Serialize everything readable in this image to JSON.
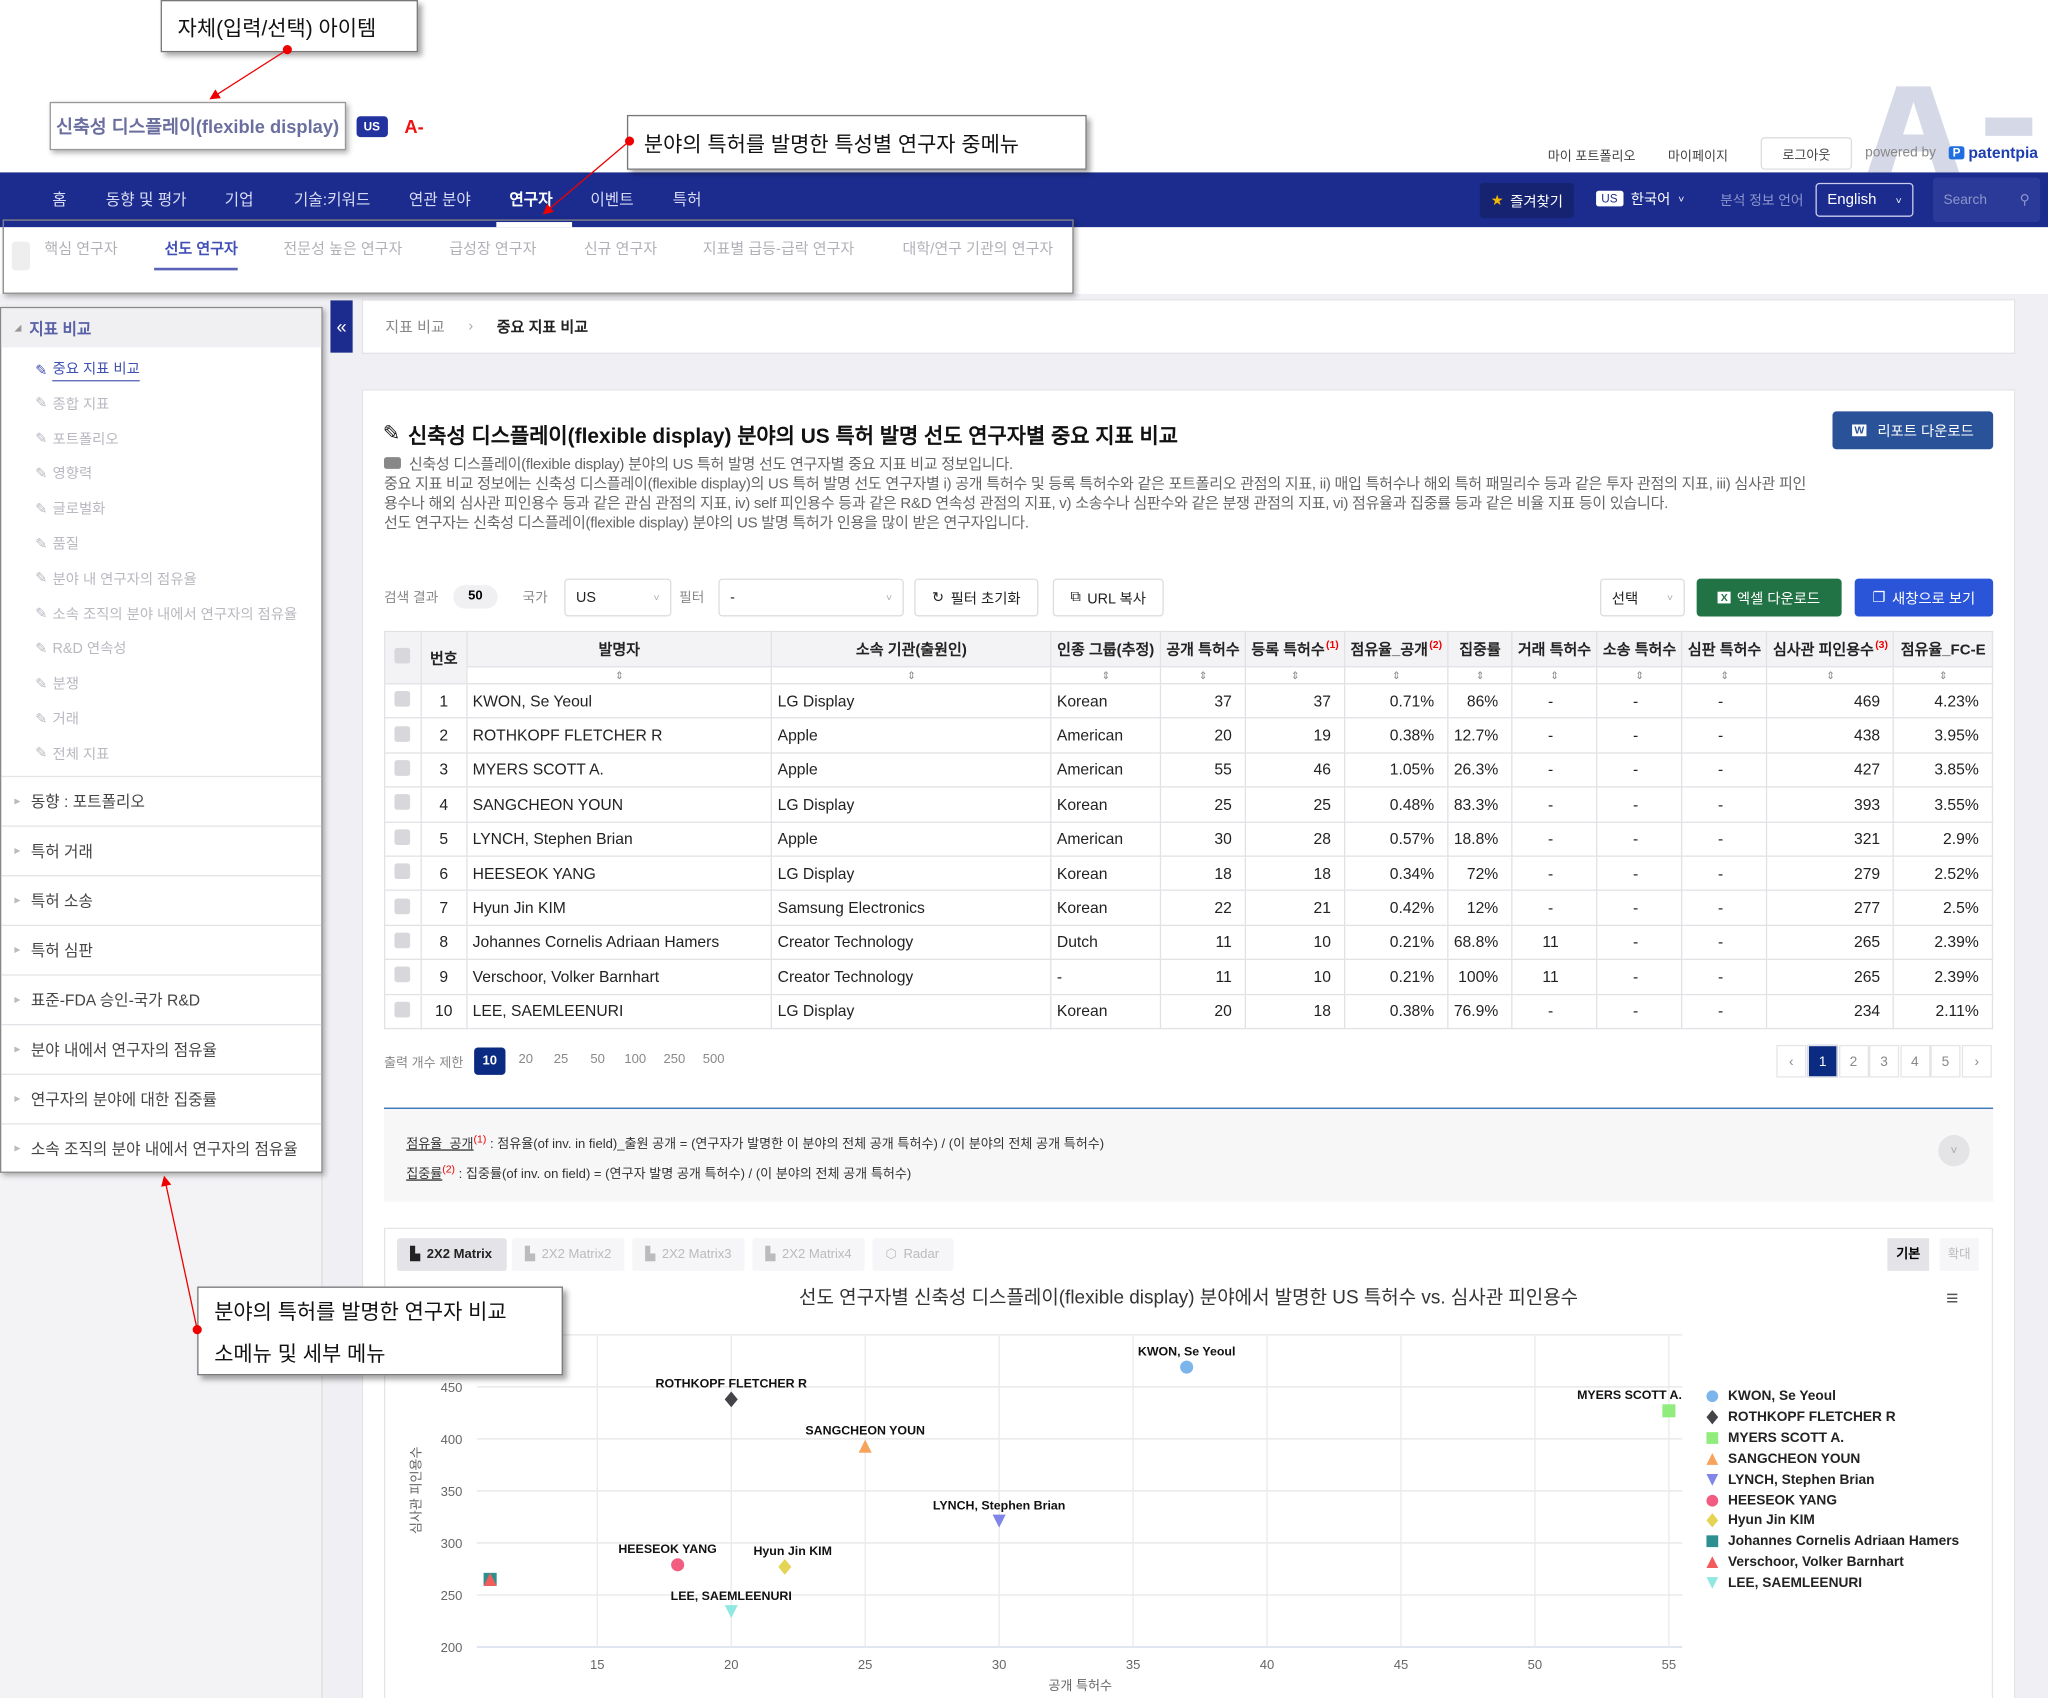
{
  "annotations": {
    "item": "자체(입력/선택) 아이템",
    "submenu": "분야의 특허를 발명한 특성별 연구자 중메뉴",
    "sidemenu_line1": "분야의 특허를 발명한 연구자 비교",
    "sidemenu_line2": "소메뉴 및 세부 메뉴"
  },
  "field": {
    "name": "신축성 디스플레이(flexible display)",
    "country": "US",
    "grade": "A-"
  },
  "top_links": {
    "portfolio": "마이 포트폴리오",
    "mypage": "마이페이지",
    "logout": "로그아웃",
    "powered": "powered by",
    "brand": "patentpia",
    "watermark": "A-"
  },
  "nav": {
    "items": [
      "홈",
      "동향 및 평가",
      "기업",
      "기술:키워드",
      "연관 분야",
      "연구자",
      "이벤트",
      "특허"
    ],
    "active": "연구자",
    "favorites": "즐겨찾기",
    "country_badge": "US",
    "language": "한국어",
    "analysis_lang_label": "분석 정보 언어",
    "analysis_lang": "English",
    "search_placeholder": "Search"
  },
  "submenu": {
    "items": [
      "핵심 연구자",
      "선도 연구자",
      "전문성 높은 연구자",
      "급성장 연구자",
      "신규 연구자",
      "지표별 급등-급락 연구자",
      "대학/연구 기관의 연구자"
    ],
    "active": "선도 연구자"
  },
  "sidebar": {
    "header": "지표 비교",
    "items": [
      "중요 지표 비교",
      "종합 지표",
      "포트폴리오",
      "영향력",
      "글로벌화",
      "품질",
      "분야 내 연구자의 점유율",
      "소속 조직의 분야 내에서 연구자의 점유율",
      "R&D 연속성",
      "분쟁",
      "거래",
      "전체 지표"
    ],
    "active": "중요 지표 비교",
    "sections": [
      "동향 : 포트폴리오",
      "특허 거래",
      "특허 소송",
      "특허 심판",
      "표준-FDA 승인-국가 R&D",
      "분야 내에서 연구자의 점유율",
      "연구자의 분야에 대한 집중률",
      "소속 조직의 분야 내에서 연구자의 점유율"
    ]
  },
  "breadcrumb": [
    "지표 비교",
    "중요 지표 비교"
  ],
  "main": {
    "title": "신축성 디스플레이(flexible display) 분야의 US 특허 발명 선도 연구자별 중요 지표 비교",
    "report_button": "리포트 다운로드",
    "description": [
      "신축성 디스플레이(flexible display) 분야의 US 특허 발명 선도 연구자별 중요 지표 비교 정보입니다.",
      "중요 지표 비교 정보에는 신축성 디스플레이(flexible display)의 US 특허 발명 선도 연구자별 i) 공개 특허수 및 등록 특허수와 같은 포트폴리오 관점의 지표, ii) 매입 특허수나 해외 특허 패밀리수 등과 같은 투자 관점의 지표, iii) 심사관 피인",
      "용수나 해외 심사관 피인용수 등과 같은 관심 관점의 지표, iv) self 피인용수 등과 같은 R&D 연속성 관점의 지표, v) 소송수나 심판수와 같은 분쟁 관점의 지표, vi) 점유율과 집중률 등과 같은 비율 지표 등이 있습니다.",
      "선도 연구자는 신축성 디스플레이(flexible display) 분야의 US 발명 특허가 인용을 많이 받은 연구자입니다."
    ]
  },
  "controls": {
    "result_label": "검색 결과",
    "result_count": "50",
    "country_label": "국가",
    "country_value": "US",
    "filter_label": "필터",
    "filter_value": "-",
    "reset": "필터 초기화",
    "copy_url": "URL 복사",
    "select": "선택",
    "excel": "엑셀 다운로드",
    "new_window": "새창으로 보기"
  },
  "table": {
    "columns": [
      "번호",
      "발명자",
      "소속 기관(출원인)",
      "인종 그룹(추정)",
      "공개 특허수",
      "등록 특허수",
      "점유율_공개",
      "집중률",
      "거래 특허수",
      "소송 특허수",
      "심판 특허수",
      "심사관 피인용수",
      "점유율_FC-E"
    ],
    "footnote_marks": {
      "6": "(1)",
      "7": "(2)",
      "12": "(3)"
    },
    "rows": [
      [
        "1",
        "KWON, Se Yeoul",
        "LG Display",
        "Korean",
        "37",
        "37",
        "0.71%",
        "86%",
        "-",
        "-",
        "-",
        "469",
        "4.23%"
      ],
      [
        "2",
        "ROTHKOPF FLETCHER R",
        "Apple",
        "American",
        "20",
        "19",
        "0.38%",
        "12.7%",
        "-",
        "-",
        "-",
        "438",
        "3.95%"
      ],
      [
        "3",
        "MYERS SCOTT A.",
        "Apple",
        "American",
        "55",
        "46",
        "1.05%",
        "26.3%",
        "-",
        "-",
        "-",
        "427",
        "3.85%"
      ],
      [
        "4",
        "SANGCHEON YOUN",
        "LG Display",
        "Korean",
        "25",
        "25",
        "0.48%",
        "83.3%",
        "-",
        "-",
        "-",
        "393",
        "3.55%"
      ],
      [
        "5",
        "LYNCH, Stephen Brian",
        "Apple",
        "American",
        "30",
        "28",
        "0.57%",
        "18.8%",
        "-",
        "-",
        "-",
        "321",
        "2.9%"
      ],
      [
        "6",
        "HEESEOK YANG",
        "LG Display",
        "Korean",
        "18",
        "18",
        "0.34%",
        "72%",
        "-",
        "-",
        "-",
        "279",
        "2.52%"
      ],
      [
        "7",
        "Hyun Jin KIM",
        "Samsung Electronics",
        "Korean",
        "22",
        "21",
        "0.42%",
        "12%",
        "-",
        "-",
        "-",
        "277",
        "2.5%"
      ],
      [
        "8",
        "Johannes Cornelis Adriaan Hamers",
        "Creator Technology",
        "Dutch",
        "11",
        "10",
        "0.21%",
        "68.8%",
        "11",
        "-",
        "-",
        "265",
        "2.39%"
      ],
      [
        "9",
        "Verschoor, Volker Barnhart",
        "Creator Technology",
        "-",
        "11",
        "10",
        "0.21%",
        "100%",
        "11",
        "-",
        "-",
        "265",
        "2.39%"
      ],
      [
        "10",
        "LEE, SAEMLEENURI",
        "LG Display",
        "Korean",
        "20",
        "18",
        "0.38%",
        "76.9%",
        "-",
        "-",
        "-",
        "234",
        "2.11%"
      ]
    ]
  },
  "limit": {
    "label": "출력 개수 제한",
    "options": [
      "10",
      "20",
      "25",
      "50",
      "100",
      "250",
      "500"
    ],
    "active": "10"
  },
  "pagination": {
    "pages": [
      "1",
      "2",
      "3",
      "4",
      "5"
    ],
    "active": "1",
    "prev": "‹",
    "next": "›"
  },
  "footnotes": [
    {
      "term": "점유율_공개",
      "mark": "(1)",
      "text": " : 점유율(of inv. in field)_출원 공개 = (연구자가 발명한 이 분야의 전체 공개 특허수) / (이 분야의 전체 공개 특허수)"
    },
    {
      "term": "집중률",
      "mark": "(2)",
      "text": " : 집중률(of inv. on field) = (연구자 발명 공개 특허수) / (이 분야의 전체 공개 특허수)"
    }
  ],
  "chart_tabs": [
    "2X2 Matrix",
    "2X2 Matrix2",
    "2X2 Matrix3",
    "2X2 Matrix4",
    "Radar"
  ],
  "chart_tab_active": "2X2 Matrix",
  "chart_modes": [
    "기본",
    "확대"
  ],
  "chart_data": {
    "type": "scatter",
    "title": "선도 연구자별 신축성 디스플레이(flexible display) 분야에서 발명한 US 특허수 vs. 심사관 피인용수",
    "xlabel": "공개 특허수",
    "ylabel": "심사관 피인용수",
    "xlim": [
      10.5,
      55.5
    ],
    "ylim": [
      200,
      500
    ],
    "xticks": [
      15,
      20,
      25,
      30,
      35,
      40,
      45,
      50,
      55
    ],
    "yticks": [
      200,
      250,
      300,
      350,
      400,
      450
    ],
    "grid": true,
    "legend": "right",
    "series": [
      {
        "name": "KWON, Se Yeoul",
        "x": 37,
        "y": 469,
        "color": "#7cb5ec",
        "symbol": "circle",
        "label": true
      },
      {
        "name": "ROTHKOPF FLETCHER R",
        "x": 20,
        "y": 438,
        "color": "#434348",
        "symbol": "diamond",
        "label": true
      },
      {
        "name": "MYERS SCOTT A.",
        "x": 55,
        "y": 427,
        "color": "#90ed7d",
        "symbol": "square",
        "label": true
      },
      {
        "name": "SANGCHEON YOUN",
        "x": 25,
        "y": 393,
        "color": "#f7a35c",
        "symbol": "triangle",
        "label": true
      },
      {
        "name": "LYNCH, Stephen Brian",
        "x": 30,
        "y": 321,
        "color": "#8085e9",
        "symbol": "triangle-down",
        "label": true
      },
      {
        "name": "HEESEOK YANG",
        "x": 18,
        "y": 279,
        "color": "#f15c80",
        "symbol": "circle",
        "label": true
      },
      {
        "name": "Hyun Jin KIM",
        "x": 22,
        "y": 277,
        "color": "#e4d354",
        "symbol": "diamond",
        "label": true
      },
      {
        "name": "Johannes Cornelis Adriaan Hamers",
        "x": 11,
        "y": 265,
        "color": "#2b908f",
        "symbol": "square",
        "label": false
      },
      {
        "name": "Verschoor, Volker Barnhart",
        "x": 11,
        "y": 265,
        "color": "#f45b5b",
        "symbol": "triangle",
        "label": false
      },
      {
        "name": "LEE, SAEMLEENURI",
        "x": 20,
        "y": 234,
        "color": "#91e8e1",
        "symbol": "triangle-down",
        "label": true
      }
    ]
  },
  "colors": {
    "nav": "#1c2c8e",
    "accent": "#3f4fb5",
    "excel": "#217346",
    "new_window": "#2a55d8",
    "report": "#2a5298",
    "active_page": "#0b2b82"
  }
}
